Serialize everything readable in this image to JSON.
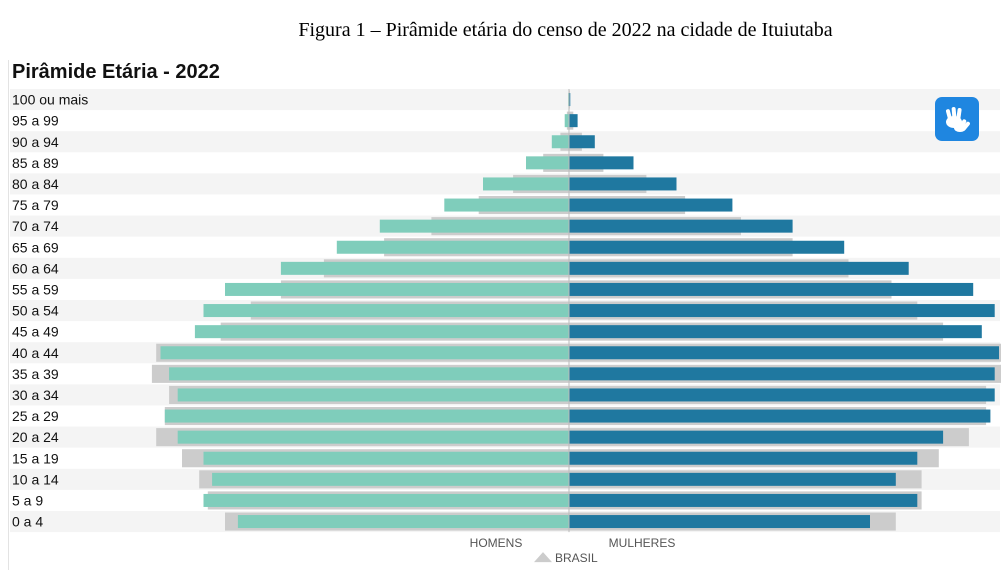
{
  "caption": "Figura 1 – Pirâmide etária do censo de 2022 na cidade de Ituiutaba",
  "accessibility_icon": "sign-language-hands-icon",
  "colors": {
    "male": "#7fcdbb",
    "female": "#1f78a0",
    "brasil": "#cccccc",
    "stripe": "#f4f4f4",
    "accessibility": "#1f86e0"
  },
  "chart_data": {
    "type": "population-pyramid",
    "title": "Pirâmide Etária - 2022",
    "xlabel_left": "HOMENS",
    "xlabel_right": "MULHERES",
    "reference_label": "BRASIL",
    "legend_placement": "bottom-center",
    "grid": false,
    "max": 100,
    "categories": [
      "100 ou mais",
      "95 a 99",
      "90 a 94",
      "85 a 89",
      "80 a 84",
      "75 a 79",
      "70 a 74",
      "65 a 69",
      "60 a 64",
      "55 a 59",
      "50 a 54",
      "45 a 49",
      "40 a 44",
      "35 a 39",
      "30 a 34",
      "25 a 29",
      "20 a 24",
      "15 a 19",
      "10 a 14",
      "5 a 9",
      "0 a 4"
    ],
    "series": [
      {
        "name": "HOMENS",
        "values": [
          0.2,
          1,
          4,
          10,
          20,
          29,
          44,
          54,
          67,
          80,
          85,
          87,
          95,
          93,
          91,
          94,
          91,
          85,
          83,
          85,
          77
        ]
      },
      {
        "name": "MULHERES",
        "values": [
          0.3,
          2,
          6,
          15,
          25,
          38,
          52,
          64,
          79,
          94,
          99,
          96,
          100,
          99,
          99,
          98,
          87,
          81,
          76,
          81,
          70
        ]
      },
      {
        "name": "BRASIL",
        "values": [
          [
            0.1,
            0.2
          ],
          [
            0.5,
            1
          ],
          [
            2,
            3
          ],
          [
            6,
            8
          ],
          [
            13,
            18
          ],
          [
            21,
            27
          ],
          [
            32,
            40
          ],
          [
            43,
            52
          ],
          [
            57,
            65
          ],
          [
            67,
            75
          ],
          [
            74,
            81
          ],
          [
            81,
            87
          ],
          [
            96,
            101
          ],
          [
            97,
            101
          ],
          [
            93,
            97
          ],
          [
            94,
            97
          ],
          [
            96,
            93
          ],
          [
            90,
            86
          ],
          [
            86,
            82
          ],
          [
            84,
            82
          ],
          [
            80,
            76
          ]
        ]
      }
    ]
  }
}
